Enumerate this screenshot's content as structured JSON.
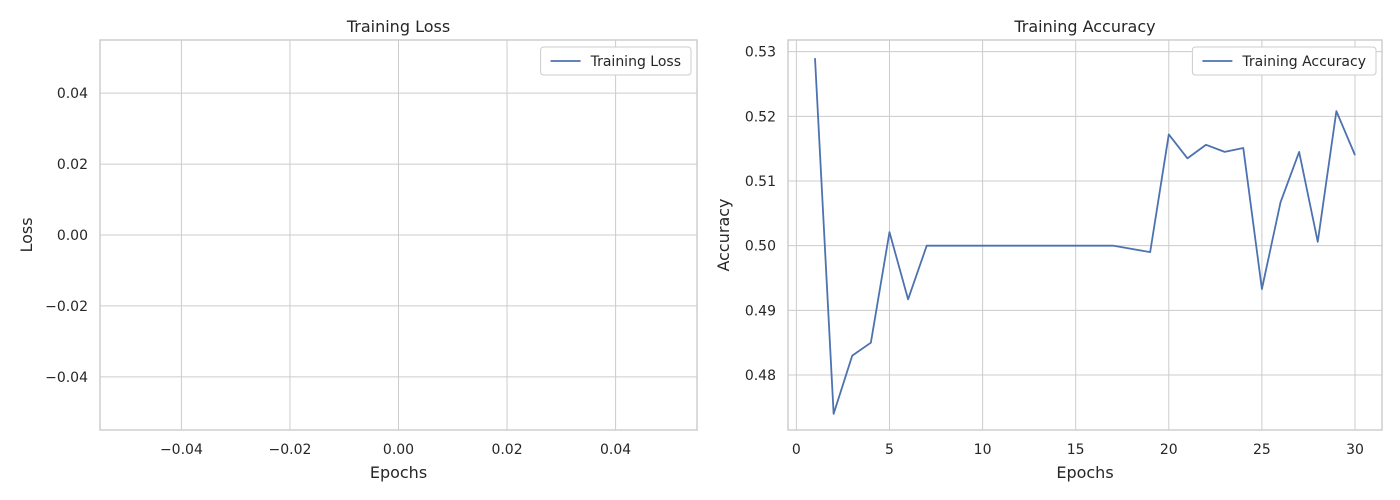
{
  "chart_data": [
    {
      "type": "line",
      "title": "Training Loss",
      "xlabel": "Epochs",
      "ylabel": "Loss",
      "xlim": [
        -0.055,
        0.055
      ],
      "ylim": [
        -0.055,
        0.055
      ],
      "x_ticks": [
        -0.04,
        -0.02,
        0.0,
        0.02,
        0.04
      ],
      "x_tick_labels": [
        "−0.04",
        "−0.02",
        "0.00",
        "0.02",
        "0.04"
      ],
      "y_ticks": [
        -0.04,
        -0.02,
        0.0,
        0.02,
        0.04
      ],
      "y_tick_labels": [
        "−0.04",
        "−0.02",
        "0.00",
        "0.02",
        "0.04"
      ],
      "grid": true,
      "legend_position": "top-right",
      "line_color": "#4c72b0",
      "series": [
        {
          "name": "Training Loss",
          "x": [],
          "values": []
        }
      ]
    },
    {
      "type": "line",
      "title": "Training Accuracy",
      "xlabel": "Epochs",
      "ylabel": "Accuracy",
      "xlim": [
        -0.45,
        31.45
      ],
      "ylim": [
        0.4715,
        0.5318
      ],
      "x_ticks": [
        0,
        5,
        10,
        15,
        20,
        25,
        30
      ],
      "x_tick_labels": [
        "0",
        "5",
        "10",
        "15",
        "20",
        "25",
        "30"
      ],
      "y_ticks": [
        0.48,
        0.49,
        0.5,
        0.51,
        0.52,
        0.53
      ],
      "y_tick_labels": [
        "0.48",
        "0.49",
        "0.50",
        "0.51",
        "0.52",
        "0.53"
      ],
      "grid": true,
      "legend_position": "top-right",
      "line_color": "#4c72b0",
      "series": [
        {
          "name": "Training Accuracy",
          "x": [
            1,
            2,
            3,
            4,
            5,
            6,
            7,
            8,
            9,
            10,
            11,
            12,
            13,
            14,
            15,
            16,
            17,
            18,
            19,
            20,
            21,
            22,
            23,
            24,
            25,
            26,
            27,
            28,
            29,
            30
          ],
          "values": [
            0.529,
            0.474,
            0.483,
            0.485,
            0.5021,
            0.4917,
            0.5,
            0.5,
            0.5,
            0.5,
            0.5,
            0.5,
            0.5,
            0.5,
            0.5,
            0.5,
            0.5,
            0.4995,
            0.499,
            0.5172,
            0.5135,
            0.5156,
            0.5145,
            0.5151,
            0.4933,
            0.5067,
            0.5145,
            0.5006,
            0.5208,
            0.514
          ]
        }
      ]
    }
  ]
}
